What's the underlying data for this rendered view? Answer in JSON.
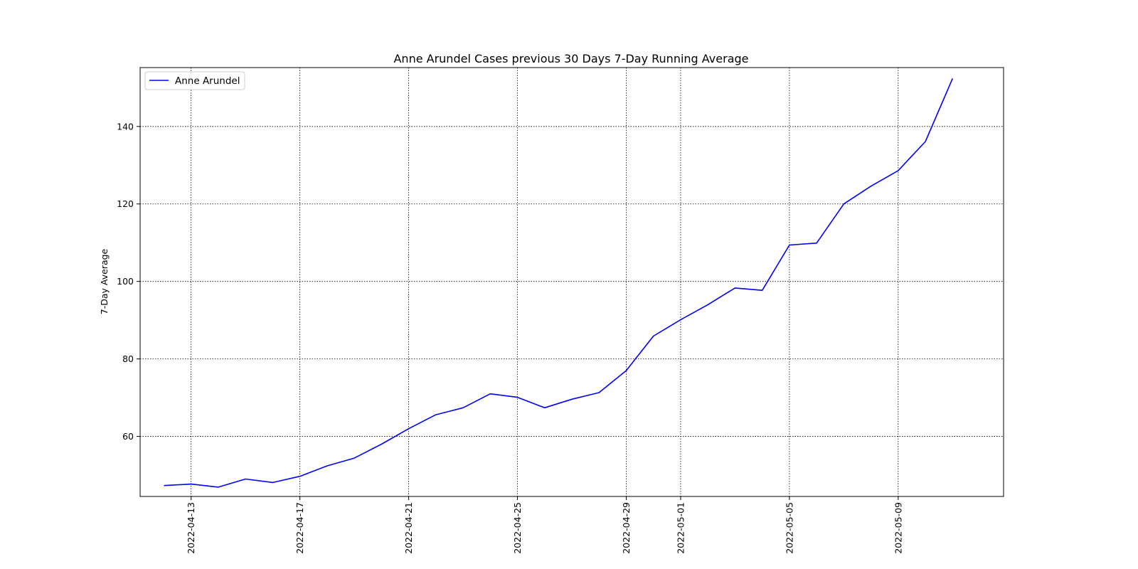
{
  "chart_data": {
    "type": "line",
    "title": "Anne Arundel Cases previous 30 Days 7-Day Running Average",
    "xlabel": "",
    "ylabel": "7-Day Average",
    "x": [
      "2022-04-12",
      "2022-04-13",
      "2022-04-14",
      "2022-04-15",
      "2022-04-16",
      "2022-04-17",
      "2022-04-18",
      "2022-04-19",
      "2022-04-20",
      "2022-04-21",
      "2022-04-22",
      "2022-04-23",
      "2022-04-24",
      "2022-04-25",
      "2022-04-26",
      "2022-04-27",
      "2022-04-28",
      "2022-04-29",
      "2022-04-30",
      "2022-05-01",
      "2022-05-02",
      "2022-05-03",
      "2022-05-04",
      "2022-05-05",
      "2022-05-06",
      "2022-05-07",
      "2022-05-08",
      "2022-05-09",
      "2022-05-10",
      "2022-05-11"
    ],
    "xlim": [
      "2022-04-11 03:00",
      "2022-05-12 21:00"
    ],
    "x_ticks": [
      "2022-04-13",
      "2022-04-17",
      "2022-04-21",
      "2022-04-25",
      "2022-04-29",
      "2022-05-01",
      "2022-05-05",
      "2022-05-09"
    ],
    "series": [
      {
        "name": "Anne Arundel",
        "color": "#0000ff",
        "values": [
          47.3,
          47.7,
          46.9,
          49.0,
          48.1,
          49.7,
          52.4,
          54.4,
          58.0,
          62.0,
          65.6,
          67.4,
          71.0,
          70.1,
          67.4,
          69.6,
          71.3,
          77.0,
          85.9,
          90.1,
          94.0,
          98.3,
          97.7,
          109.4,
          109.9,
          120.0,
          124.6,
          128.6,
          136.1,
          152.4
        ]
      }
    ],
    "ylim": [
      44.5,
      155.2
    ],
    "y_ticks": [
      60,
      80,
      100,
      120,
      140
    ],
    "grid": true,
    "legend": "upper-left"
  }
}
